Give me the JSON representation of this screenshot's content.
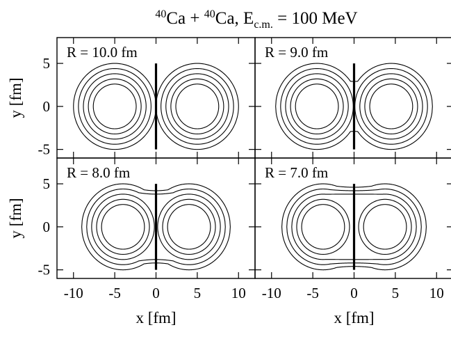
{
  "chart_data": {
    "type": "contour",
    "title": {
      "n1_mass": "40",
      "n1_elem": "Ca",
      "plus": " + ",
      "n2_mass": "40",
      "n2_elem": "Ca",
      "comma": ", ",
      "energy_symbol": "E",
      "energy_sub": "c.m.",
      "energy_value": " = 100 MeV"
    },
    "xlabel": "x [fm]",
    "ylabel": "y [fm]",
    "xlim": [
      -12,
      12
    ],
    "ylim": [
      -6,
      8
    ],
    "xticks": [
      -10,
      -5,
      0,
      5,
      10
    ],
    "xtick_labels": [
      "-10",
      "-5",
      "0",
      "5",
      "10"
    ],
    "yticks": [
      -5,
      0,
      5
    ],
    "ytick_labels": [
      "-5",
      "0",
      "5"
    ],
    "contour_levels": 5,
    "outer_contour_radius_fm": [
      5.0,
      4.4,
      3.8,
      3.2,
      2.6
    ],
    "panels": [
      {
        "label": "R = 10.0 fm",
        "R": 10.0,
        "center_separation_fm": 10.0,
        "neck_half_widths_fm": [
          1.2,
          0.9
        ]
      },
      {
        "label": "R = 9.0 fm",
        "R": 9.0,
        "center_separation_fm": 9.0,
        "neck_half_widths_fm": [
          2.9,
          2.6,
          2.2,
          1.8,
          1.3
        ]
      },
      {
        "label": "R = 8.0 fm",
        "R": 8.0,
        "center_separation_fm": 8.0,
        "neck_half_widths_fm": [
          4.2,
          3.8,
          3.4,
          3.0,
          2.5
        ]
      },
      {
        "label": "R = 7.0 fm",
        "R": 7.0,
        "center_separation_fm": 7.5,
        "neck_half_widths_fm": [
          4.6,
          4.2,
          3.8,
          3.4,
          2.9
        ]
      }
    ],
    "separator_line": {
      "x": 0,
      "y_range": [
        -5,
        5
      ]
    },
    "grid": false
  }
}
